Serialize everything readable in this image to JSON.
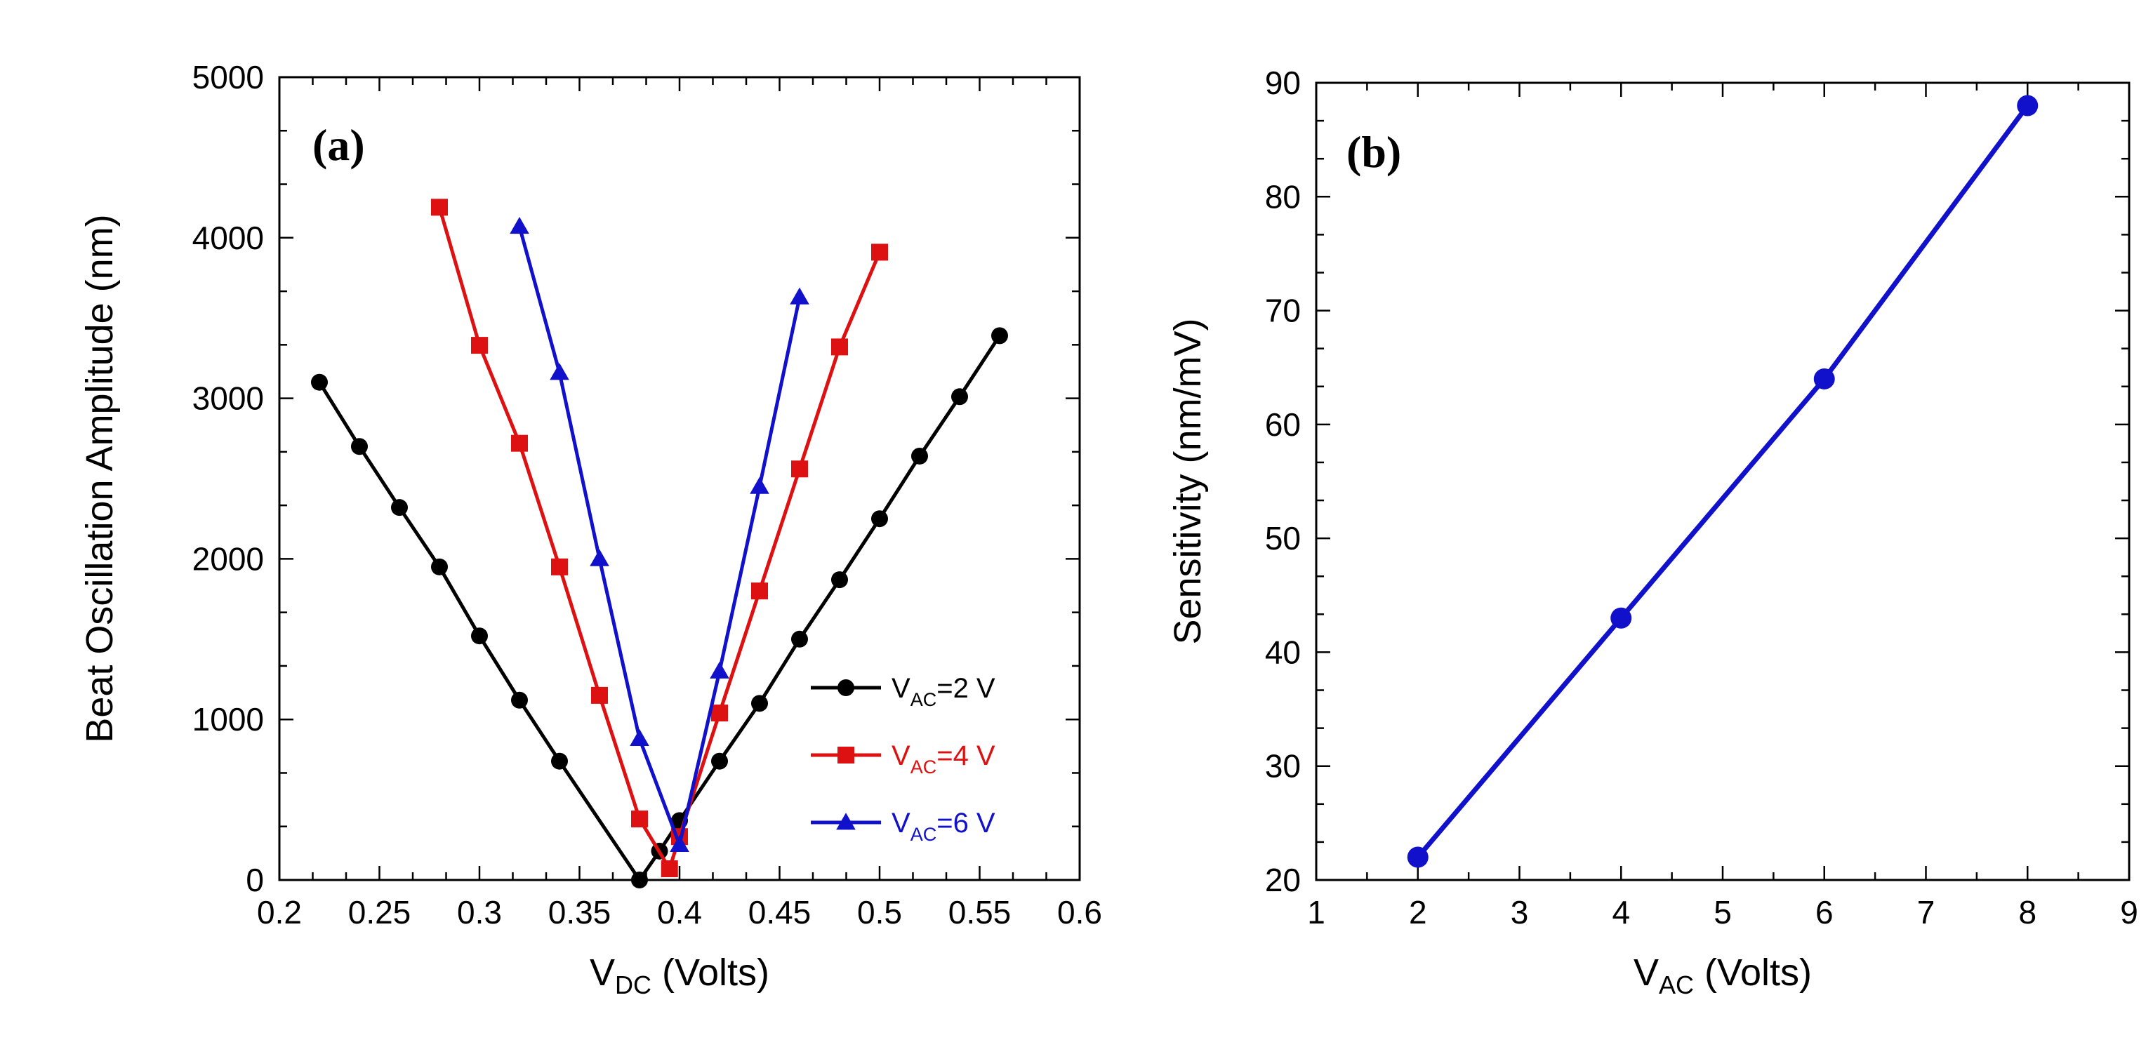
{
  "chart_data": [
    {
      "type": "line",
      "panel_label": "(a)",
      "xlabel": {
        "main": "V",
        "sub": "DC",
        "rest": " (Volts)"
      },
      "ylabel": "Beat Oscillation Amplitude (nm)",
      "xlim": [
        0.2,
        0.6
      ],
      "ylim": [
        0,
        5000
      ],
      "xticks": [
        "0.2",
        "0.25",
        "0.3",
        "0.35",
        "0.4",
        "0.45",
        "0.5",
        "0.55",
        "0.6"
      ],
      "yticks": [
        "0",
        "1000",
        "2000",
        "3000",
        "4000",
        "5000"
      ],
      "grid": false,
      "legend_position": "bottom-right",
      "series": [
        {
          "name": {
            "main": "V",
            "sub": "AC",
            "rest": "=2 V"
          },
          "color": "#000000",
          "marker": "circle",
          "x": [
            0.22,
            0.24,
            0.26,
            0.28,
            0.3,
            0.32,
            0.34,
            0.38,
            0.39,
            0.4,
            0.42,
            0.44,
            0.46,
            0.48,
            0.5,
            0.52,
            0.54,
            0.56
          ],
          "y": [
            3100,
            2700,
            2320,
            1950,
            1520,
            1120,
            740,
            0,
            180,
            370,
            740,
            1100,
            1500,
            1870,
            2250,
            2640,
            3010,
            3390
          ]
        },
        {
          "name": {
            "main": "V",
            "sub": "AC",
            "rest": "=4 V"
          },
          "color": "#dd1111",
          "marker": "square",
          "x": [
            0.28,
            0.3,
            0.32,
            0.34,
            0.36,
            0.38,
            0.395,
            0.4,
            0.42,
            0.44,
            0.46,
            0.48,
            0.5
          ],
          "y": [
            4190,
            3330,
            2720,
            1950,
            1150,
            380,
            70,
            270,
            1040,
            1800,
            2560,
            3320,
            3910
          ]
        },
        {
          "name": {
            "main": "V",
            "sub": "AC",
            "rest": "=6 V"
          },
          "color": "#1111cc",
          "marker": "triangle",
          "x": [
            0.32,
            0.34,
            0.36,
            0.38,
            0.4,
            0.42,
            0.44,
            0.46
          ],
          "y": [
            4070,
            3160,
            2000,
            880,
            220,
            1300,
            2450,
            3630
          ]
        }
      ]
    },
    {
      "type": "line",
      "panel_label": "(b)",
      "xlabel": {
        "main": "V",
        "sub": "AC",
        "rest": " (Volts)"
      },
      "ylabel": "Sensitivity (nm/mV)",
      "xlim": [
        1,
        9
      ],
      "ylim": [
        20,
        90
      ],
      "xticks": [
        "1",
        "2",
        "3",
        "4",
        "5",
        "6",
        "7",
        "8",
        "9"
      ],
      "yticks": [
        "20",
        "30",
        "40",
        "50",
        "60",
        "70",
        "80",
        "90"
      ],
      "grid": false,
      "series": [
        {
          "color": "#1111cc",
          "marker": "circle",
          "x": [
            2,
            4,
            6,
            8
          ],
          "y": [
            22,
            43,
            64,
            88
          ]
        }
      ]
    }
  ]
}
